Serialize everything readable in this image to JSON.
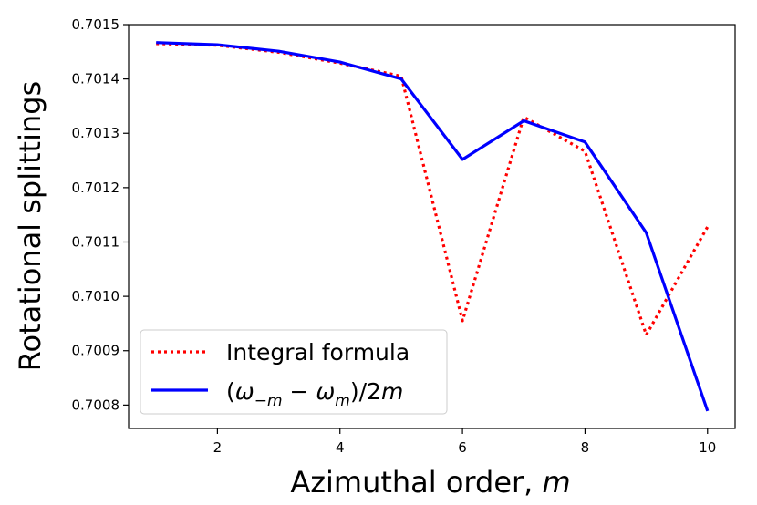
{
  "chart_data": {
    "type": "line",
    "xlabel": "Azimuthal order, m",
    "ylabel": "Rotational splittings",
    "xlim": [
      0.55,
      10.45
    ],
    "ylim": [
      0.700757,
      0.7015
    ],
    "xticks": [
      2,
      4,
      6,
      8,
      10
    ],
    "yticks": [
      0.7008,
      0.7009,
      0.701,
      0.7011,
      0.7012,
      0.7013,
      0.7014,
      0.7015
    ],
    "ytick_labels": [
      "0.7008",
      "0.7009",
      "0.7010",
      "0.7011",
      "0.7012",
      "0.7013",
      "0.7014",
      "0.7015"
    ],
    "legend_position": "lower-left",
    "grid": false,
    "x": [
      1,
      2,
      3,
      4,
      5,
      6,
      7,
      8,
      9,
      10
    ],
    "series": [
      {
        "name": "Integral formula",
        "style": "dotted",
        "color": "#ff0000",
        "values": [
          0.701465,
          0.701462,
          0.701449,
          0.701429,
          0.701405,
          0.700955,
          0.70133,
          0.701267,
          0.700929,
          0.701128
        ]
      },
      {
        "name": "(ω−m − ωm)/2m",
        "style": "solid",
        "color": "#0000ff",
        "values": [
          0.701467,
          0.701463,
          0.701451,
          0.701431,
          0.7014,
          0.701252,
          0.701323,
          0.701284,
          0.701117,
          0.700789
        ]
      }
    ]
  }
}
